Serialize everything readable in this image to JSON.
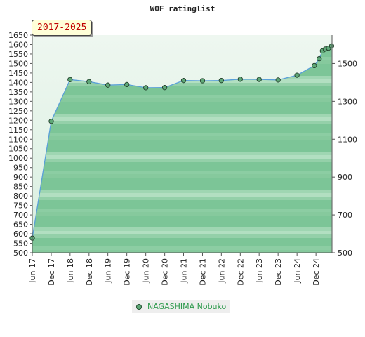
{
  "chart_data": {
    "type": "line",
    "title": "WOF ratinglist",
    "period_label": "2017-2025",
    "series": [
      {
        "name": "NAGASHIMA Nobuko",
        "color": "#5aa0d8",
        "marker_color": "#5fa878",
        "points": [
          {
            "x": "2017-06-01",
            "y": 577
          },
          {
            "x": "2017-12-01",
            "y": 1195
          },
          {
            "x": "2018-06-01",
            "y": 1415
          },
          {
            "x": "2018-12-01",
            "y": 1404
          },
          {
            "x": "2019-06-01",
            "y": 1386
          },
          {
            "x": "2019-12-01",
            "y": 1389
          },
          {
            "x": "2020-06-01",
            "y": 1372
          },
          {
            "x": "2020-12-01",
            "y": 1373
          },
          {
            "x": "2021-06-01",
            "y": 1410
          },
          {
            "x": "2021-12-01",
            "y": 1409
          },
          {
            "x": "2022-06-01",
            "y": 1410
          },
          {
            "x": "2022-12-01",
            "y": 1417
          },
          {
            "x": "2023-06-01",
            "y": 1416
          },
          {
            "x": "2023-12-01",
            "y": 1413
          },
          {
            "x": "2024-06-01",
            "y": 1438
          },
          {
            "x": "2024-11-15",
            "y": 1489
          },
          {
            "x": "2025-01-01",
            "y": 1525
          },
          {
            "x": "2025-02-01",
            "y": 1567
          },
          {
            "x": "2025-03-01",
            "y": 1576
          },
          {
            "x": "2025-04-01",
            "y": 1581
          },
          {
            "x": "2025-05-01",
            "y": 1593
          }
        ]
      }
    ],
    "x_ticks": [
      "Jun 17",
      "Dec 17",
      "Jun 18",
      "Dec 18",
      "Jun 19",
      "Dec 19",
      "Jun 20",
      "Dec 20",
      "Jun 21",
      "Dec 21",
      "Jun 22",
      "Dec 22",
      "Jun 23",
      "Dec 23",
      "Jun 24",
      "Dec 24"
    ],
    "x_tick_dates": [
      "2017-06-01",
      "2017-12-01",
      "2018-06-01",
      "2018-12-01",
      "2019-06-01",
      "2019-12-01",
      "2020-06-01",
      "2020-12-01",
      "2021-06-01",
      "2021-12-01",
      "2022-06-01",
      "2022-12-01",
      "2023-06-01",
      "2023-12-01",
      "2024-06-01",
      "2024-12-01"
    ],
    "xlim": [
      "2017-06-01",
      "2025-05-05"
    ],
    "y_left": {
      "ylim": [
        500,
        1650
      ],
      "ticks": [
        500,
        550,
        600,
        650,
        700,
        750,
        800,
        850,
        900,
        950,
        1000,
        1050,
        1100,
        1150,
        1200,
        1250,
        1300,
        1350,
        1400,
        1450,
        1500,
        1550,
        1600,
        1650
      ]
    },
    "y_right": {
      "ylim": [
        500,
        1650
      ],
      "ticks": [
        500,
        700,
        900,
        1100,
        1300,
        1500
      ]
    },
    "fill": "area under line, green gradient bands",
    "grid": false,
    "legend_position": "bottom-center"
  }
}
